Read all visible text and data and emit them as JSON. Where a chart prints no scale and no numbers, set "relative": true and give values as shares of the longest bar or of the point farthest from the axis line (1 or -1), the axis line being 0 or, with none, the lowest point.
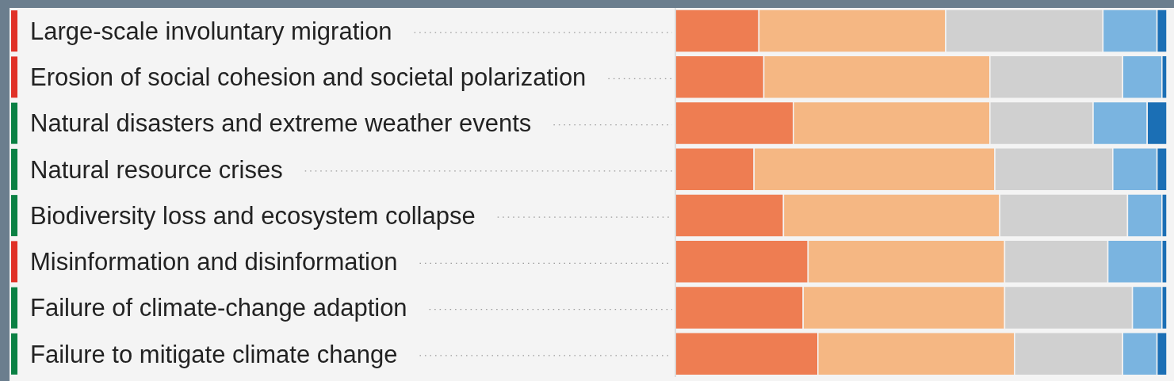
{
  "chart_data": {
    "type": "bar",
    "orientation": "horizontal",
    "stacked": true,
    "relative": true,
    "categories": [
      "Large-scale involuntary migration",
      "Erosion of social cohesion and societal polarization",
      "Natural disasters and extreme weather events",
      "Natural resource crises",
      "Biodiversity loss and ecosystem collapse",
      "Misinformation and disinformation",
      "Failure of climate-change adaption",
      "Failure to mitigate climate change"
    ],
    "series": [
      {
        "color": "#ee7d52",
        "values": [
          0.17,
          0.18,
          0.24,
          0.16,
          0.22,
          0.27,
          0.26,
          0.29
        ]
      },
      {
        "color": "#f5b783",
        "values": [
          0.38,
          0.46,
          0.4,
          0.49,
          0.44,
          0.4,
          0.41,
          0.4
        ]
      },
      {
        "color": "#d0d0d0",
        "values": [
          0.32,
          0.27,
          0.21,
          0.24,
          0.26,
          0.21,
          0.26,
          0.22
        ]
      },
      {
        "color": "#7ab4e0",
        "values": [
          0.11,
          0.08,
          0.11,
          0.09,
          0.07,
          0.11,
          0.06,
          0.07
        ]
      },
      {
        "color": "#1b6fb5",
        "values": [
          0.02,
          0.01,
          0.04,
          0.02,
          0.01,
          0.01,
          0.01,
          0.02
        ]
      }
    ],
    "grid": false,
    "legend": false
  }
}
